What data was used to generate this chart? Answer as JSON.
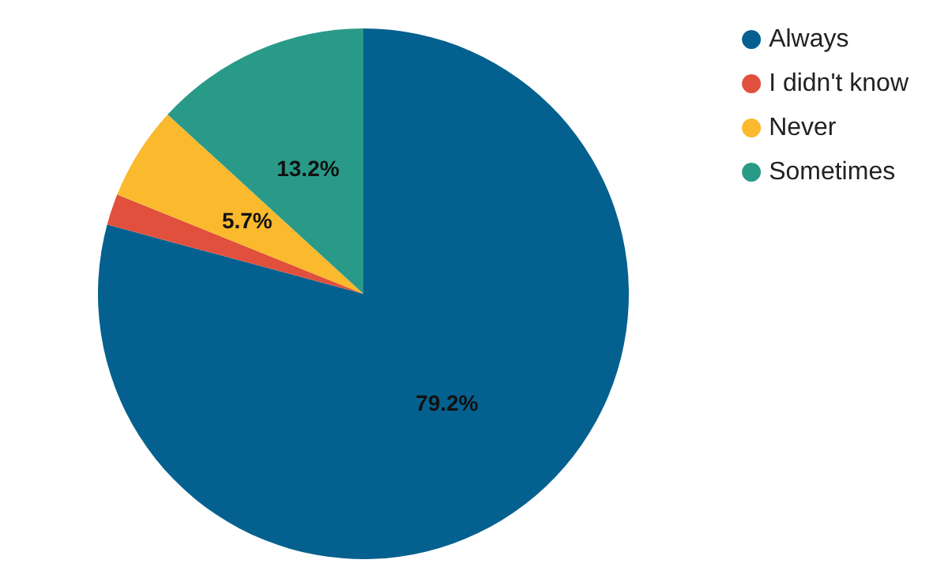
{
  "chart_data": {
    "type": "pie",
    "categories": [
      "Always",
      "I didn't know",
      "Never",
      "Sometimes"
    ],
    "values": [
      79.2,
      1.9,
      5.7,
      13.2
    ],
    "colors": [
      "#04618f",
      "#e0503c",
      "#fbb92e",
      "#2a9a88"
    ],
    "value_labels": [
      "79.2%",
      null,
      "5.7%",
      "13.2%"
    ],
    "legend": "top right"
  }
}
